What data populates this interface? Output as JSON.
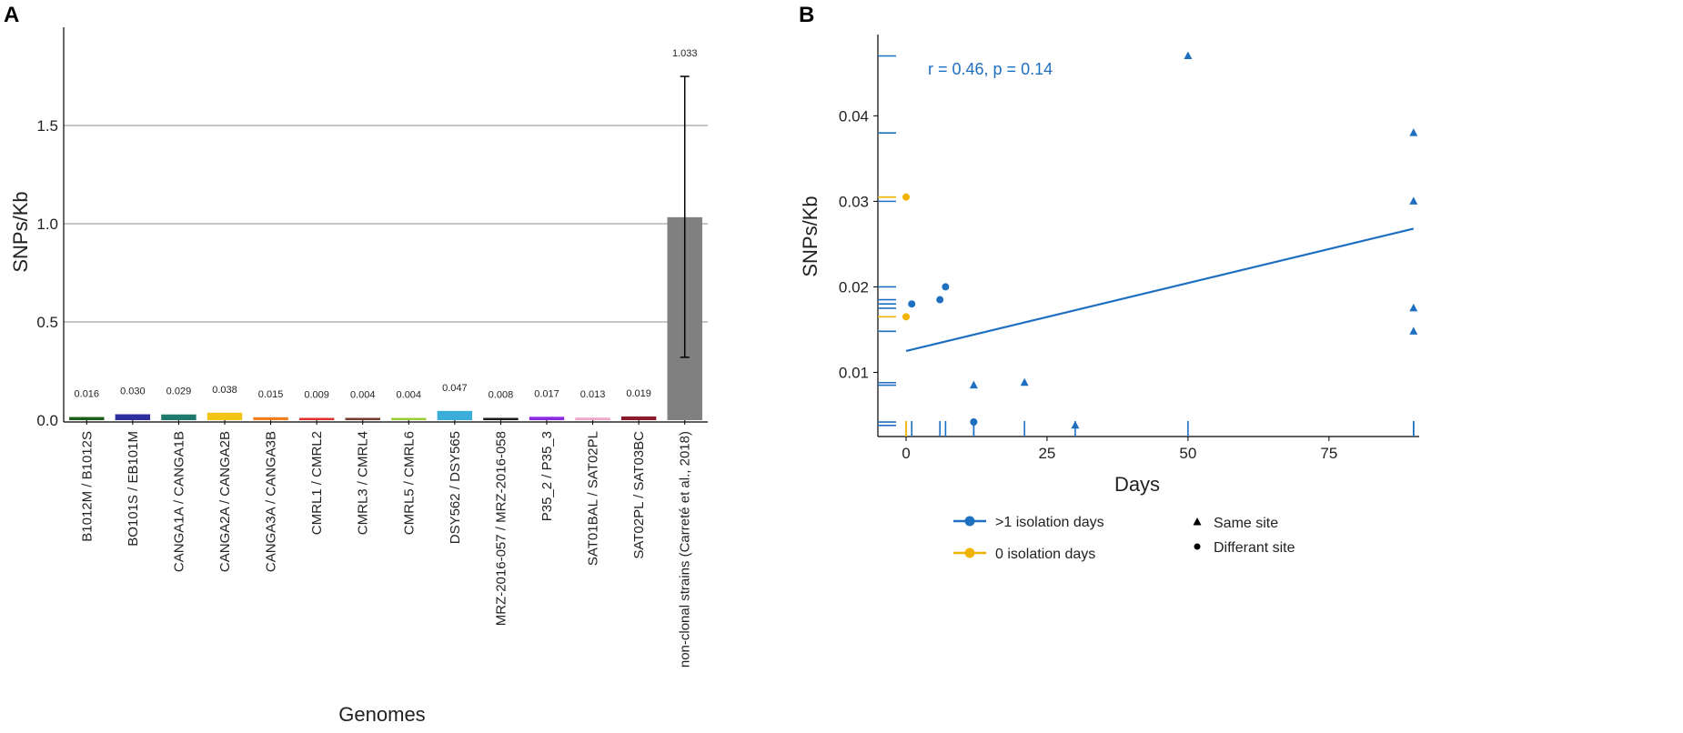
{
  "chart_data": [
    {
      "panel_label": "A",
      "type": "bar",
      "xlabel": "Genomes",
      "ylabel": "SNPs/Kb",
      "ylim": [
        0,
        2.0
      ],
      "yticks": [
        "0.0",
        "0.5",
        "1.0",
        "1.5"
      ],
      "ytick_values": [
        0,
        0.5,
        1.0,
        1.5
      ],
      "grid": true,
      "categories": [
        {
          "label": "B1012M / B1012S",
          "value": 0.016,
          "value_label": "0.016",
          "color": "#1a5e1a"
        },
        {
          "label": "BO101S / EB101M",
          "value": 0.03,
          "value_label": "0.030",
          "color": "#2e2e9e"
        },
        {
          "label": "CANGA1A / CANGA1B",
          "value": 0.029,
          "value_label": "0.029",
          "color": "#1f7a6e"
        },
        {
          "label": "CANGA2A / CANGA2B",
          "value": 0.038,
          "value_label": "0.038",
          "color": "#f2c414"
        },
        {
          "label": "CANGA3A / CANGA3B",
          "value": 0.015,
          "value_label": "0.015",
          "color": "#f07f1f"
        },
        {
          "label": "CMRL1 / CMRL2",
          "value": 0.009,
          "value_label": "0.009",
          "color": "#e0302a"
        },
        {
          "label": "CMRL3 / CMRL4",
          "value": 0.004,
          "value_label": "0.004",
          "color": "#7a3a2a"
        },
        {
          "label": "CMRL5 / CMRL6",
          "value": 0.004,
          "value_label": "0.004",
          "color": "#9acd32"
        },
        {
          "label": "DSY562 / DSY565",
          "value": 0.047,
          "value_label": "0.047",
          "color": "#3aaed8"
        },
        {
          "label": "MRZ-2016-057 / MRZ-2016-058",
          "value": 0.008,
          "value_label": "0.008",
          "color": "#1a1a1a"
        },
        {
          "label": "P35_2 / P35_3",
          "value": 0.017,
          "value_label": "0.017",
          "color": "#8a2be2"
        },
        {
          "label": "SAT01BAL / SAT02PL",
          "value": 0.013,
          "value_label": "0.013",
          "color": "#f4a6c8"
        },
        {
          "label": "SAT02PL / SAT03BC",
          "value": 0.019,
          "value_label": "0.019",
          "color": "#8b1a2a"
        },
        {
          "label": "non-clonal strains (Carreté et al., 2018)",
          "value": 1.033,
          "value_label": "1.033",
          "color": "#808080",
          "error": [
            0.32,
            1.75
          ]
        }
      ]
    },
    {
      "panel_label": "B",
      "type": "scatter",
      "xlabel": "Days",
      "ylabel": "SNPs/Kb",
      "xlim": [
        -5,
        91
      ],
      "ylim": [
        0.0025,
        0.0495
      ],
      "xticks": [
        "0",
        "25",
        "50",
        "75"
      ],
      "xtick_values": [
        0,
        25,
        50,
        75
      ],
      "yticks": [
        "0.01",
        "0.02",
        "0.03",
        "0.04"
      ],
      "ytick_values": [
        0.01,
        0.02,
        0.03,
        0.04
      ],
      "annotation": "r = 0.46, p = 0.14",
      "trendline": {
        "x": [
          0,
          90
        ],
        "y": [
          0.0125,
          0.0268
        ]
      },
      "series": [
        {
          "name": ">1 isolation days",
          "color": "#1f6fc1",
          "points": [
            {
              "x": 50,
              "y": 0.047,
              "shape": "triangle"
            },
            {
              "x": 90,
              "y": 0.038,
              "shape": "triangle"
            },
            {
              "x": 90,
              "y": 0.03,
              "shape": "triangle"
            },
            {
              "x": 90,
              "y": 0.0175,
              "shape": "triangle"
            },
            {
              "x": 90,
              "y": 0.0148,
              "shape": "triangle"
            },
            {
              "x": 12,
              "y": 0.0085,
              "shape": "triangle"
            },
            {
              "x": 21,
              "y": 0.0088,
              "shape": "triangle"
            },
            {
              "x": 30,
              "y": 0.0038,
              "shape": "triangle"
            },
            {
              "x": 1,
              "y": 0.018,
              "shape": "circle"
            },
            {
              "x": 6,
              "y": 0.0185,
              "shape": "circle"
            },
            {
              "x": 7,
              "y": 0.02,
              "shape": "circle"
            },
            {
              "x": 12,
              "y": 0.0042,
              "shape": "circle"
            }
          ]
        },
        {
          "name": "0 isolation days",
          "color": "#f0b400",
          "points": [
            {
              "x": 0,
              "y": 0.0305,
              "shape": "circle"
            },
            {
              "x": 0,
              "y": 0.0165,
              "shape": "circle"
            }
          ]
        }
      ],
      "legend": {
        "series": [
          {
            "label": ">1 isolation days",
            "color": "#1f6fc1"
          },
          {
            "label": "0 isolation days",
            "color": "#f0b400"
          }
        ],
        "shapes": [
          {
            "label": "Same site",
            "shape": "triangle"
          },
          {
            "label": "Differant site",
            "shape": "circle"
          }
        ],
        "placement": "bottom"
      }
    }
  ]
}
